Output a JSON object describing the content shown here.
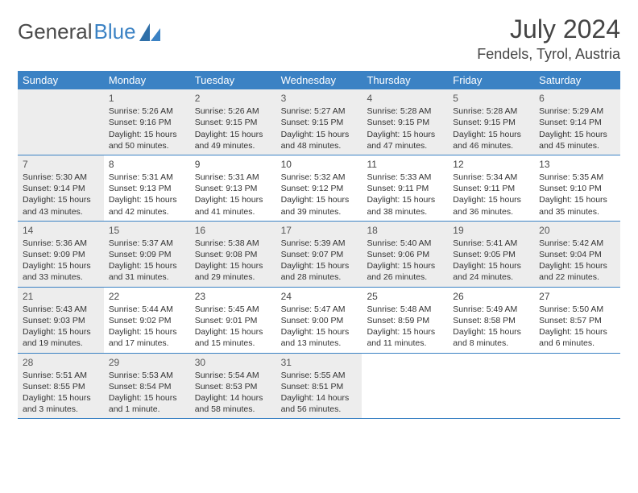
{
  "brand": {
    "part1": "General",
    "part2": "Blue"
  },
  "title": "July 2024",
  "location": "Fendels, Tyrol, Austria",
  "colors": {
    "header_bg": "#3b82c4",
    "header_text": "#ffffff",
    "shaded_cell": "#ededed",
    "rule": "#3b82c4",
    "text": "#333333"
  },
  "day_names": [
    "Sunday",
    "Monday",
    "Tuesday",
    "Wednesday",
    "Thursday",
    "Friday",
    "Saturday"
  ],
  "weeks": [
    [
      {
        "blank": true,
        "shaded": true
      },
      {
        "num": "1",
        "shaded": true,
        "sunrise": "Sunrise: 5:26 AM",
        "sunset": "Sunset: 9:16 PM",
        "daylight": "Daylight: 15 hours and 50 minutes."
      },
      {
        "num": "2",
        "shaded": true,
        "sunrise": "Sunrise: 5:26 AM",
        "sunset": "Sunset: 9:15 PM",
        "daylight": "Daylight: 15 hours and 49 minutes."
      },
      {
        "num": "3",
        "shaded": true,
        "sunrise": "Sunrise: 5:27 AM",
        "sunset": "Sunset: 9:15 PM",
        "daylight": "Daylight: 15 hours and 48 minutes."
      },
      {
        "num": "4",
        "shaded": true,
        "sunrise": "Sunrise: 5:28 AM",
        "sunset": "Sunset: 9:15 PM",
        "daylight": "Daylight: 15 hours and 47 minutes."
      },
      {
        "num": "5",
        "shaded": true,
        "sunrise": "Sunrise: 5:28 AM",
        "sunset": "Sunset: 9:15 PM",
        "daylight": "Daylight: 15 hours and 46 minutes."
      },
      {
        "num": "6",
        "shaded": true,
        "sunrise": "Sunrise: 5:29 AM",
        "sunset": "Sunset: 9:14 PM",
        "daylight": "Daylight: 15 hours and 45 minutes."
      }
    ],
    [
      {
        "num": "7",
        "shaded": true,
        "sunrise": "Sunrise: 5:30 AM",
        "sunset": "Sunset: 9:14 PM",
        "daylight": "Daylight: 15 hours and 43 minutes."
      },
      {
        "num": "8",
        "sunrise": "Sunrise: 5:31 AM",
        "sunset": "Sunset: 9:13 PM",
        "daylight": "Daylight: 15 hours and 42 minutes."
      },
      {
        "num": "9",
        "sunrise": "Sunrise: 5:31 AM",
        "sunset": "Sunset: 9:13 PM",
        "daylight": "Daylight: 15 hours and 41 minutes."
      },
      {
        "num": "10",
        "sunrise": "Sunrise: 5:32 AM",
        "sunset": "Sunset: 9:12 PM",
        "daylight": "Daylight: 15 hours and 39 minutes."
      },
      {
        "num": "11",
        "sunrise": "Sunrise: 5:33 AM",
        "sunset": "Sunset: 9:11 PM",
        "daylight": "Daylight: 15 hours and 38 minutes."
      },
      {
        "num": "12",
        "sunrise": "Sunrise: 5:34 AM",
        "sunset": "Sunset: 9:11 PM",
        "daylight": "Daylight: 15 hours and 36 minutes."
      },
      {
        "num": "13",
        "sunrise": "Sunrise: 5:35 AM",
        "sunset": "Sunset: 9:10 PM",
        "daylight": "Daylight: 15 hours and 35 minutes."
      }
    ],
    [
      {
        "num": "14",
        "shaded": true,
        "sunrise": "Sunrise: 5:36 AM",
        "sunset": "Sunset: 9:09 PM",
        "daylight": "Daylight: 15 hours and 33 minutes."
      },
      {
        "num": "15",
        "shaded": true,
        "sunrise": "Sunrise: 5:37 AM",
        "sunset": "Sunset: 9:09 PM",
        "daylight": "Daylight: 15 hours and 31 minutes."
      },
      {
        "num": "16",
        "shaded": true,
        "sunrise": "Sunrise: 5:38 AM",
        "sunset": "Sunset: 9:08 PM",
        "daylight": "Daylight: 15 hours and 29 minutes."
      },
      {
        "num": "17",
        "shaded": true,
        "sunrise": "Sunrise: 5:39 AM",
        "sunset": "Sunset: 9:07 PM",
        "daylight": "Daylight: 15 hours and 28 minutes."
      },
      {
        "num": "18",
        "shaded": true,
        "sunrise": "Sunrise: 5:40 AM",
        "sunset": "Sunset: 9:06 PM",
        "daylight": "Daylight: 15 hours and 26 minutes."
      },
      {
        "num": "19",
        "shaded": true,
        "sunrise": "Sunrise: 5:41 AM",
        "sunset": "Sunset: 9:05 PM",
        "daylight": "Daylight: 15 hours and 24 minutes."
      },
      {
        "num": "20",
        "shaded": true,
        "sunrise": "Sunrise: 5:42 AM",
        "sunset": "Sunset: 9:04 PM",
        "daylight": "Daylight: 15 hours and 22 minutes."
      }
    ],
    [
      {
        "num": "21",
        "shaded": true,
        "sunrise": "Sunrise: 5:43 AM",
        "sunset": "Sunset: 9:03 PM",
        "daylight": "Daylight: 15 hours and 19 minutes."
      },
      {
        "num": "22",
        "sunrise": "Sunrise: 5:44 AM",
        "sunset": "Sunset: 9:02 PM",
        "daylight": "Daylight: 15 hours and 17 minutes."
      },
      {
        "num": "23",
        "sunrise": "Sunrise: 5:45 AM",
        "sunset": "Sunset: 9:01 PM",
        "daylight": "Daylight: 15 hours and 15 minutes."
      },
      {
        "num": "24",
        "sunrise": "Sunrise: 5:47 AM",
        "sunset": "Sunset: 9:00 PM",
        "daylight": "Daylight: 15 hours and 13 minutes."
      },
      {
        "num": "25",
        "sunrise": "Sunrise: 5:48 AM",
        "sunset": "Sunset: 8:59 PM",
        "daylight": "Daylight: 15 hours and 11 minutes."
      },
      {
        "num": "26",
        "sunrise": "Sunrise: 5:49 AM",
        "sunset": "Sunset: 8:58 PM",
        "daylight": "Daylight: 15 hours and 8 minutes."
      },
      {
        "num": "27",
        "sunrise": "Sunrise: 5:50 AM",
        "sunset": "Sunset: 8:57 PM",
        "daylight": "Daylight: 15 hours and 6 minutes."
      }
    ],
    [
      {
        "num": "28",
        "shaded": true,
        "sunrise": "Sunrise: 5:51 AM",
        "sunset": "Sunset: 8:55 PM",
        "daylight": "Daylight: 15 hours and 3 minutes."
      },
      {
        "num": "29",
        "shaded": true,
        "sunrise": "Sunrise: 5:53 AM",
        "sunset": "Sunset: 8:54 PM",
        "daylight": "Daylight: 15 hours and 1 minute."
      },
      {
        "num": "30",
        "shaded": true,
        "sunrise": "Sunrise: 5:54 AM",
        "sunset": "Sunset: 8:53 PM",
        "daylight": "Daylight: 14 hours and 58 minutes."
      },
      {
        "num": "31",
        "shaded": true,
        "sunrise": "Sunrise: 5:55 AM",
        "sunset": "Sunset: 8:51 PM",
        "daylight": "Daylight: 14 hours and 56 minutes."
      },
      {
        "blank": true
      },
      {
        "blank": true
      },
      {
        "blank": true
      }
    ]
  ]
}
